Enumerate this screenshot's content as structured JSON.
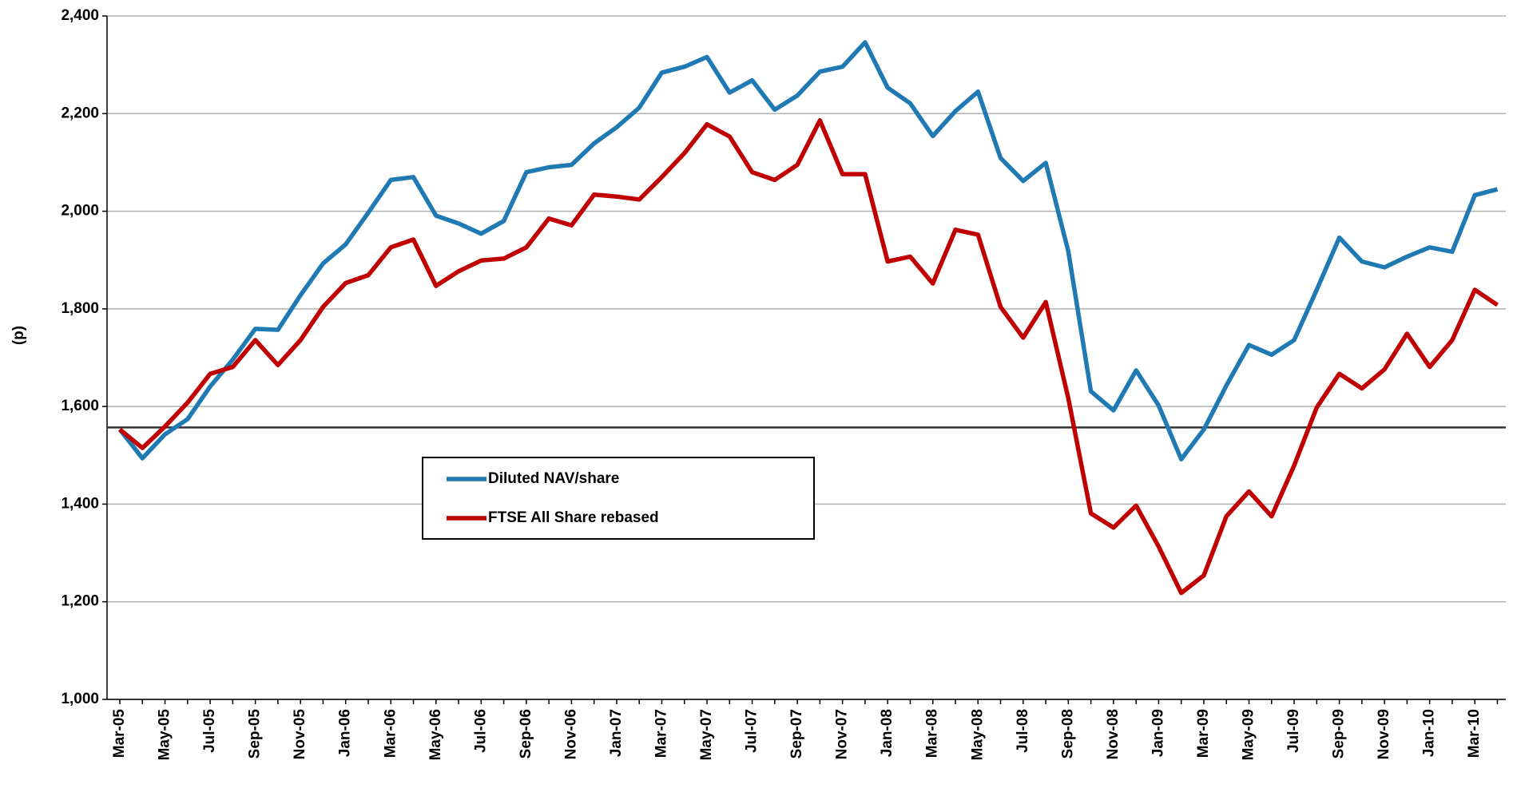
{
  "chart_data": {
    "type": "line",
    "y_label": "(p)",
    "categories": [
      "Mar-05",
      null,
      "May-05",
      null,
      "Jul-05",
      null,
      "Sep-05",
      null,
      "Nov-05",
      null,
      "Jan-06",
      null,
      "Mar-06",
      null,
      "May-06",
      null,
      "Jul-06",
      null,
      "Sep-06",
      null,
      "Nov-06",
      null,
      "Jan-07",
      null,
      "Mar-07",
      null,
      "May-07",
      null,
      "Jul-07",
      null,
      "Sep-07",
      null,
      "Nov-07",
      null,
      "Jan-08",
      null,
      "Mar-08",
      null,
      "May-08",
      null,
      "Jul-08",
      null,
      "Sep-08",
      null,
      "Nov-08",
      null,
      "Jan-09",
      null,
      "Mar-09",
      null,
      "May-09",
      null,
      "Jul-09",
      null,
      "Sep-09",
      null,
      "Nov-09",
      null,
      "Jan-10",
      null,
      "Mar-10",
      null
    ],
    "series": [
      {
        "name": "Diluted NAV/share",
        "color": "#1f7ab4",
        "values": [
          1553,
          1494,
          1543,
          1574,
          1641,
          1696,
          1759,
          1757,
          1828,
          1893,
          1932,
          1997,
          2064,
          2070,
          1991,
          1975,
          1954,
          1980,
          2080,
          2090,
          2095,
          2139,
          2172,
          2212,
          2284,
          2296,
          2316,
          2243,
          2268,
          2208,
          2237,
          2286,
          2296,
          2346,
          2253,
          2221,
          2154,
          2205,
          2245,
          2109,
          2062,
          2099,
          1918,
          1631,
          1592,
          1674,
          1602,
          1492,
          1553,
          1643,
          1726,
          1706,
          1736,
          1839,
          1946,
          1897,
          1885,
          1907,
          1926,
          1917,
          2033,
          2045
        ]
      },
      {
        "name": "FTSE All Share rebased",
        "color": "#c00000",
        "values": [
          1553,
          1515,
          1559,
          1608,
          1667,
          1681,
          1736,
          1685,
          1736,
          1804,
          1853,
          1869,
          1926,
          1942,
          1847,
          1877,
          1899,
          1903,
          1926,
          1985,
          1971,
          2034,
          2030,
          2024,
          2070,
          2119,
          2178,
          2153,
          2080,
          2064,
          2095,
          2186,
          2076,
          2076,
          1897,
          1907,
          1852,
          1962,
          1952,
          1804,
          1741,
          1814,
          1617,
          1381,
          1352,
          1397,
          1313,
          1218,
          1254,
          1375,
          1426,
          1375,
          1479,
          1598,
          1667,
          1637,
          1676,
          1749,
          1681,
          1736,
          1839,
          1808
        ]
      }
    ],
    "reference_line": 1557,
    "ylim": [
      1000,
      2400
    ],
    "yticks": [
      {
        "value": 1000,
        "label": "1,000"
      },
      {
        "value": 1200,
        "label": "1,200"
      },
      {
        "value": 1400,
        "label": "1,400"
      },
      {
        "value": 1600,
        "label": "1,600"
      },
      {
        "value": 1800,
        "label": "1,800"
      },
      {
        "value": 2000,
        "label": "2,000"
      },
      {
        "value": 2200,
        "label": "2,200"
      },
      {
        "value": 2400,
        "label": "2,400"
      }
    ],
    "grid": true
  }
}
